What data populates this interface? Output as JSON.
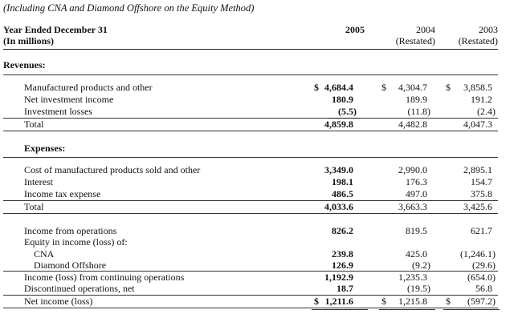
{
  "subtitle": "(Including CNA and Diamond Offshore on the Equity Method)",
  "header": {
    "label_line1": "Year Ended December 31",
    "label_line2": "(In millions)",
    "col_2005": "2005",
    "col_2004": "2004",
    "col_2004_sub": "(Restated)",
    "col_2003": "2003",
    "col_2003_sub": "(Restated)"
  },
  "currency_symbol": "$",
  "revenues": {
    "title": "Revenues:",
    "rows": [
      {
        "label": "Manufactured products and other",
        "v2005": "4,684.4",
        "v2004": "4,304.7",
        "v2003": "3,858.5"
      },
      {
        "label": "Net investment income",
        "v2005": "180.9",
        "v2004": "189.9",
        "v2003": "191.2"
      },
      {
        "label": "Investment losses",
        "v2005": "(5.5)",
        "v2004": "(11.8)",
        "v2003": "(2.4)"
      }
    ],
    "total": {
      "label": "Total",
      "v2005": "4,859.8",
      "v2004": "4,482.8",
      "v2003": "4,047.3"
    }
  },
  "expenses": {
    "title": "Expenses:",
    "rows": [
      {
        "label": "Cost of manufactured products sold and other",
        "v2005": "3,349.0",
        "v2004": "2,990.0",
        "v2003": "2,895.1"
      },
      {
        "label": "Interest",
        "v2005": "198.1",
        "v2004": "176.3",
        "v2003": "154.7"
      },
      {
        "label": "Income tax expense",
        "v2005": "486.5",
        "v2004": "497.0",
        "v2003": "375.8"
      }
    ],
    "total": {
      "label": "Total",
      "v2005": "4,033.6",
      "v2004": "3,663.3",
      "v2003": "3,425.6"
    }
  },
  "income": {
    "operations": {
      "label": "Income from operations",
      "v2005": "826.2",
      "v2004": "819.5",
      "v2003": "621.7"
    },
    "equity_label": "Equity in income (loss) of:",
    "cna": {
      "label": "CNA",
      "v2005": "239.8",
      "v2004": "425.0",
      "v2003": "(1,246.1)"
    },
    "diamond": {
      "label": "Diamond Offshore",
      "v2005": "126.9",
      "v2004": "(9.2)",
      "v2003": "(29.6)"
    },
    "continuing": {
      "label": "Income (loss) from continuing operations",
      "v2005": "1,192.9",
      "v2004": "1,235.3",
      "v2003": "(654.0)"
    },
    "discontinued": {
      "label": "Discontinued operations, net",
      "v2005": "18.7",
      "v2004": "(19.5)",
      "v2003": "56.8"
    },
    "net": {
      "label": "Net income (loss)",
      "v2005": "1,211.6",
      "v2004": "1,215.8",
      "v2003": "(597.2)"
    }
  }
}
